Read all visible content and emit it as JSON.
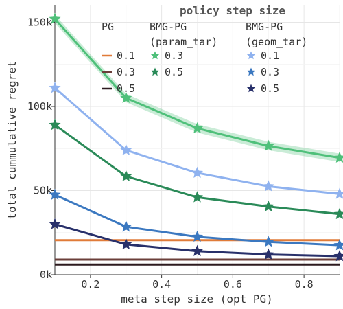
{
  "chart_data": {
    "type": "line",
    "title": "",
    "xlabel": "meta step size (opt PG)",
    "ylabel": "total cummulative regret",
    "xlim": [
      0.1,
      0.9
    ],
    "ylim": [
      0,
      160000
    ],
    "xticks": [
      0.2,
      0.4,
      0.6,
      0.8
    ],
    "xtick_labels": [
      "0.2",
      "0.4",
      "0.6",
      "0.8"
    ],
    "yticks": [
      0,
      50000,
      100000,
      150000
    ],
    "ytick_labels": [
      "0k",
      "50k",
      "100k",
      "150k"
    ],
    "grid": true,
    "legend": {
      "title": "policy step size",
      "placement": "top-right",
      "groups": [
        {
          "header": [
            "PG",
            ""
          ],
          "entries": [
            "0.1",
            "0.3",
            "0.5"
          ]
        },
        {
          "header": [
            "BMG-PG",
            "(param_tar)"
          ],
          "entries": [
            "0.3",
            "0.5"
          ]
        },
        {
          "header": [
            "BMG-PG",
            "(geom_tar)"
          ],
          "entries": [
            "0.1",
            "0.3",
            "0.5"
          ]
        }
      ]
    },
    "x": [
      0.1,
      0.3,
      0.5,
      0.7,
      0.9
    ],
    "series": [
      {
        "group": "PG",
        "name": "0.1",
        "color": "#e07b39",
        "marker": "none",
        "values": [
          20500,
          20500,
          20500,
          20500,
          20500
        ]
      },
      {
        "group": "PG",
        "name": "0.3",
        "color": "#6b3f3a",
        "marker": "none",
        "values": [
          9000,
          9000,
          9000,
          9000,
          9000
        ]
      },
      {
        "group": "PG",
        "name": "0.5",
        "color": "#2d1a1f",
        "marker": "none",
        "values": [
          6000,
          6000,
          6000,
          6000,
          6000
        ]
      },
      {
        "group": "BMG-PG (param_tar)",
        "name": "0.3",
        "color": "#4fc07a",
        "marker": "star",
        "band": 2500,
        "values": [
          152000,
          105000,
          87000,
          76500,
          69500
        ]
      },
      {
        "group": "BMG-PG (param_tar)",
        "name": "0.5",
        "color": "#2a8a58",
        "marker": "star",
        "values": [
          89000,
          58500,
          46000,
          40500,
          36000
        ]
      },
      {
        "group": "BMG-PG (geom_tar)",
        "name": "0.1",
        "color": "#8fb2ef",
        "marker": "star",
        "values": [
          111000,
          74000,
          60500,
          52500,
          48000
        ]
      },
      {
        "group": "BMG-PG (geom_tar)",
        "name": "0.3",
        "color": "#3b78c0",
        "marker": "star",
        "values": [
          47500,
          28500,
          22500,
          19500,
          17500
        ]
      },
      {
        "group": "BMG-PG (geom_tar)",
        "name": "0.5",
        "color": "#28306a",
        "marker": "star",
        "values": [
          30000,
          18000,
          14000,
          12000,
          11000
        ]
      }
    ]
  }
}
